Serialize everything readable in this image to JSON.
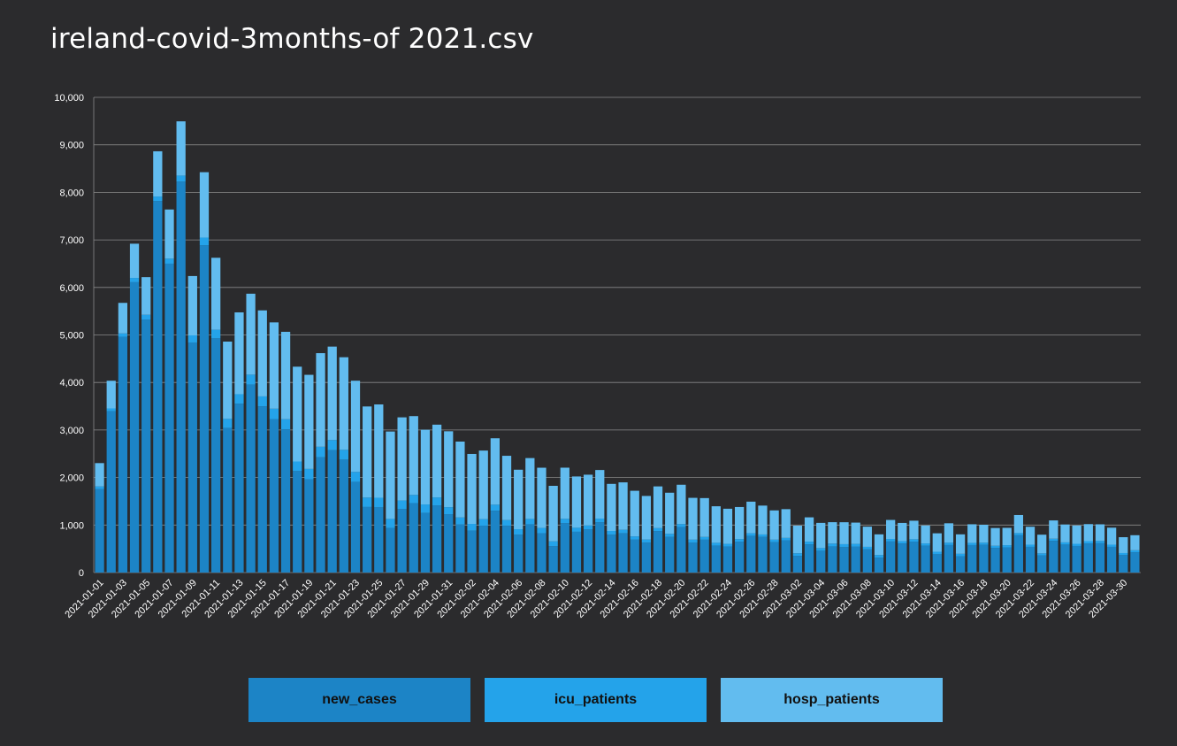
{
  "title": "ireland-covid-3months-of 2021.csv",
  "colors": {
    "background": "#2b2b2d",
    "grid": "#8a8a8a",
    "tick_text": "#ffffff",
    "new_cases": "#1c84c6",
    "icu_patients": "#24a3ea",
    "hosp_patients": "#62bcef"
  },
  "chart_data": {
    "type": "bar",
    "stacked": true,
    "title": "ireland-covid-3months-of 2021.csv",
    "ylim": [
      0,
      10000
    ],
    "yticks": [
      "0",
      "1,000",
      "2,000",
      "3,000",
      "4,000",
      "5,000",
      "6,000",
      "7,000",
      "8,000",
      "9,000",
      "10,000"
    ],
    "grid": true,
    "legend_position": "bottom",
    "categories": [
      "2021-01-01",
      "2021-01-02",
      "2021-01-03",
      "2021-01-04",
      "2021-01-05",
      "2021-01-06",
      "2021-01-07",
      "2021-01-08",
      "2021-01-09",
      "2021-01-10",
      "2021-01-11",
      "2021-01-12",
      "2021-01-13",
      "2021-01-14",
      "2021-01-15",
      "2021-01-16",
      "2021-01-17",
      "2021-01-18",
      "2021-01-19",
      "2021-01-20",
      "2021-01-21",
      "2021-01-22",
      "2021-01-23",
      "2021-01-24",
      "2021-01-25",
      "2021-01-26",
      "2021-01-27",
      "2021-01-28",
      "2021-01-29",
      "2021-01-30",
      "2021-01-31",
      "2021-02-01",
      "2021-02-02",
      "2021-02-03",
      "2021-02-04",
      "2021-02-05",
      "2021-02-06",
      "2021-02-07",
      "2021-02-08",
      "2021-02-09",
      "2021-02-10",
      "2021-02-11",
      "2021-02-12",
      "2021-02-13",
      "2021-02-14",
      "2021-02-15",
      "2021-02-16",
      "2021-02-17",
      "2021-02-18",
      "2021-02-19",
      "2021-02-20",
      "2021-02-21",
      "2021-02-22",
      "2021-02-23",
      "2021-02-24",
      "2021-02-25",
      "2021-02-26",
      "2021-02-27",
      "2021-02-28",
      "2021-03-01",
      "2021-03-02",
      "2021-03-03",
      "2021-03-04",
      "2021-03-05",
      "2021-03-06",
      "2021-03-07",
      "2021-03-08",
      "2021-03-09",
      "2021-03-10",
      "2021-03-11",
      "2021-03-12",
      "2021-03-13",
      "2021-03-14",
      "2021-03-15",
      "2021-03-16",
      "2021-03-17",
      "2021-03-18",
      "2021-03-19",
      "2021-03-20",
      "2021-03-21",
      "2021-03-22",
      "2021-03-23",
      "2021-03-24",
      "2021-03-25",
      "2021-03-26",
      "2021-03-27",
      "2021-03-28",
      "2021-03-29",
      "2021-03-30",
      "2021-03-31"
    ],
    "xtick_labels": [
      "2021-01-01",
      "2021-01-03",
      "2021-01-05",
      "2021-01-07",
      "2021-01-09",
      "2021-01-11",
      "2021-01-13",
      "2021-01-15",
      "2021-01-17",
      "2021-01-19",
      "2021-01-21",
      "2021-01-23",
      "2021-01-25",
      "2021-01-27",
      "2021-01-29",
      "2021-01-31",
      "2021-02-02",
      "2021-02-04",
      "2021-02-06",
      "2021-02-08",
      "2021-02-10",
      "2021-02-12",
      "2021-02-14",
      "2021-02-16",
      "2021-02-18",
      "2021-02-20",
      "2021-02-22",
      "2021-02-24",
      "2021-02-26",
      "2021-02-28",
      "2021-03-02",
      "2021-03-04",
      "2021-03-06",
      "2021-03-08",
      "2021-03-10",
      "2021-03-12",
      "2021-03-14",
      "2021-03-16",
      "2021-03-18",
      "2021-03-20",
      "2021-03-22",
      "2021-03-24",
      "2021-03-26",
      "2021-03-28",
      "2021-03-30"
    ],
    "series": [
      {
        "name": "new_cases",
        "values": [
          1754,
          3394,
          4962,
          6110,
          5325,
          7817,
          6500,
          8227,
          4842,
          6888,
          4929,
          3041,
          3552,
          3955,
          3498,
          3231,
          3013,
          2136,
          1965,
          2426,
          2575,
          2377,
          1910,
          1380,
          1372,
          939,
          1335,
          1461,
          1254,
          1414,
          1227,
          1011,
          880,
          986,
          1300,
          985,
          797,
          1016,
          829,
          554,
          1038,
          858,
          907,
          1057,
          796,
          825,
          692,
          629,
          873,
          749,
          960,
          633,
          691,
          569,
          550,
          651,
          774,
          749,
          641,
          679,
          352,
          592,
          459,
          551,
          535,
          543,
          488,
          312,
          654,
          612,
          651,
          566,
          385,
          579,
          345,
          578,
          583,
          518,
          530,
          785,
          541,
          359,
          667,
          589,
          559,
          613,
          617,
          541,
          367,
          426
        ]
      },
      {
        "name": "icu_patients",
        "values": [
          58,
          60,
          70,
          90,
          99,
          96,
          106,
          127,
          149,
          161,
          180,
          193,
          201,
          210,
          209,
          217,
          213,
          201,
          216,
          221,
          214,
          206,
          208,
          198,
          202,
          190,
          181,
          173,
          179,
          167,
          149,
          148,
          144,
          138,
          129,
          120,
          115,
          113,
          109,
          103,
          93,
          85,
          85,
          78,
          79,
          75,
          69,
          66,
          62,
          66,
          61,
          59,
          58,
          57,
          54,
          53,
          53,
          53,
          51,
          50,
          54,
          58,
          56,
          59,
          62,
          60,
          53,
          57,
          53,
          48,
          50,
          47,
          52,
          49,
          49,
          47,
          46,
          45,
          46,
          46,
          46,
          45,
          45,
          46,
          46,
          48,
          49,
          46,
          43,
          43
        ]
      },
      {
        "name": "hosp_patients",
        "values": [
          491,
          582,
          643,
          720,
          793,
          952,
          1034,
          1141,
          1249,
          1376,
          1515,
          1626,
          1722,
          1703,
          1810,
          1816,
          1840,
          1995,
          1980,
          1970,
          1966,
          1948,
          1919,
          1917,
          1964,
          1839,
          1750,
          1658,
          1573,
          1531,
          1597,
          1597,
          1472,
          1443,
          1397,
          1352,
          1252,
          1280,
          1268,
          1168,
          1076,
          1079,
          1067,
          1023,
          991,
          998,
          960,
          917,
          878,
          865,
          827,
          880,
          818,
          769,
          739,
          675,
          665,
          607,
          616,
          605,
          581,
          512,
          530,
          450,
          462,
          448,
          425,
          435,
          400,
          384,
          390,
          377,
          389,
          409,
          410,
          391,
          377,
          374,
          365,
          380,
          377,
          393,
          385,
          376,
          385,
          358,
          349,
          357,
          334,
          317
        ]
      }
    ]
  },
  "legend": {
    "new_cases_label": "new_cases",
    "icu_patients_label": "icu_patients",
    "hosp_patients_label": "hosp_patients"
  }
}
